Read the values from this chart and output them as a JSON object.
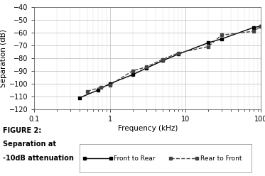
{
  "xlabel": "Frequency (kHz)",
  "ylabel": "Separation (dB)",
  "ylim": [
    -120,
    -40
  ],
  "xlim": [
    0.1,
    100
  ],
  "yticks": [
    -120,
    -110,
    -100,
    -90,
    -80,
    -70,
    -60,
    -50,
    -40
  ],
  "figure_label_line1": "FIGURE 2:",
  "figure_label_line2": "Separation at",
  "figure_label_line3": "-10dB attenuation",
  "front_to_rear_x": [
    0.4,
    0.7,
    1.0,
    2.0,
    3.0,
    5.0,
    8.0,
    20.0,
    30.0,
    80.0,
    100.0
  ],
  "front_to_rear_y": [
    -111,
    -105,
    -100,
    -93,
    -88,
    -82,
    -77,
    -68,
    -65,
    -56,
    -55
  ],
  "rear_to_front_x": [
    0.5,
    0.75,
    1.0,
    2.0,
    3.0,
    5.0,
    8.0,
    20.0,
    30.0,
    80.0,
    100.0
  ],
  "rear_to_front_y": [
    -106,
    -103,
    -101,
    -90,
    -87,
    -81,
    -76,
    -71,
    -62,
    -59,
    -55
  ],
  "line1_color": "#000000",
  "line2_color": "#444444",
  "background_color": "#ffffff",
  "grid_major_color": "#bbbbbb",
  "grid_minor_color": "#dddddd",
  "legend1": "Front to Rear",
  "legend2": "Rear to Front",
  "tick_fontsize": 7,
  "label_fontsize": 7.5
}
